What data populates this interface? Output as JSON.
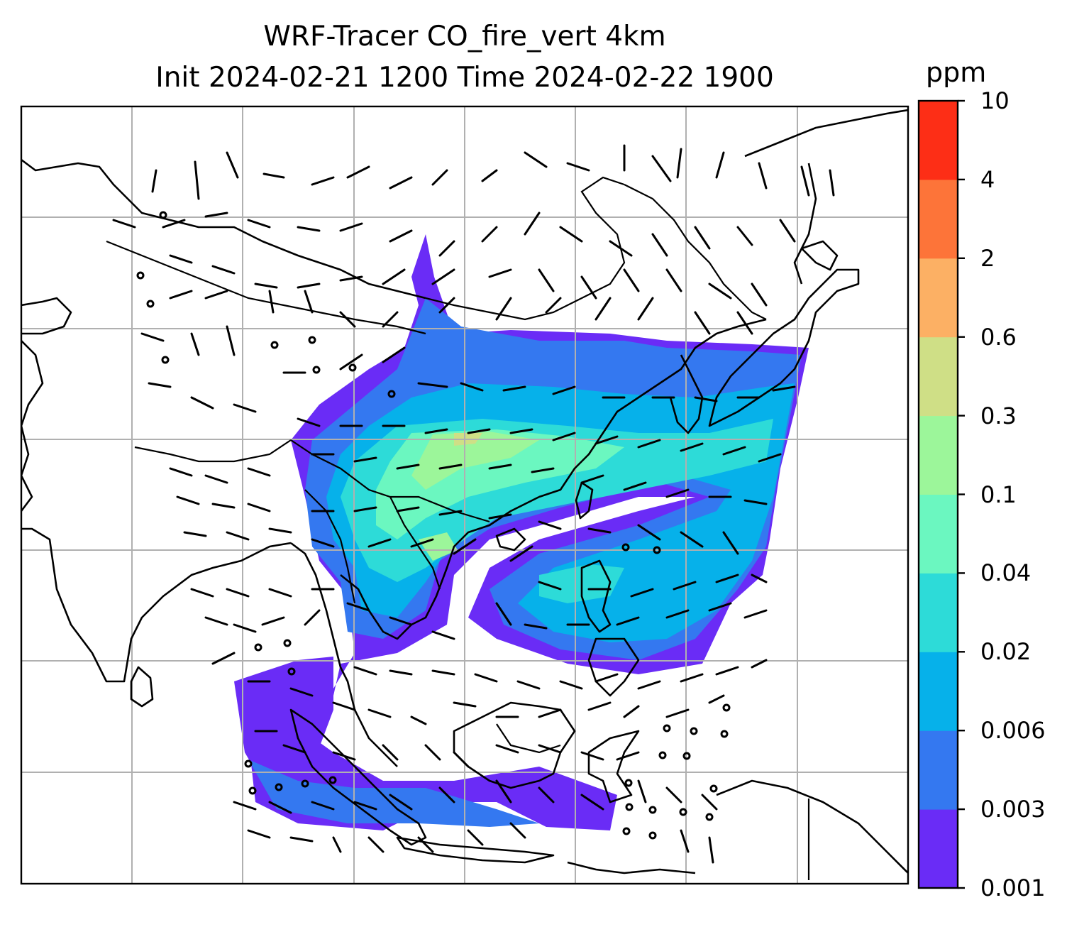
{
  "title": {
    "line1": "WRF-Tracer CO_fire_vert 4km",
    "line2": "Init 2024-02-21 1200 Time 2024-02-22 1900"
  },
  "colorbar": {
    "unit": "ppm",
    "levels": [
      "0.001",
      "0.003",
      "0.006",
      "0.02",
      "0.04",
      "0.1",
      "0.3",
      "0.6",
      "2",
      "4",
      "10"
    ],
    "colors": [
      "#6a2cf6",
      "#3478f0",
      "#06b1ea",
      "#2ddbd8",
      "#6bf7c0",
      "#9cf69a",
      "#cfdf86",
      "#fcb064",
      "#fd7439",
      "#fd2e16"
    ]
  },
  "map": {
    "features": [
      "coastlines",
      "country-borders",
      "lat-lon-gridlines",
      "wind-barbs",
      "calm-wind-circles",
      "co-plume-fill"
    ]
  }
}
